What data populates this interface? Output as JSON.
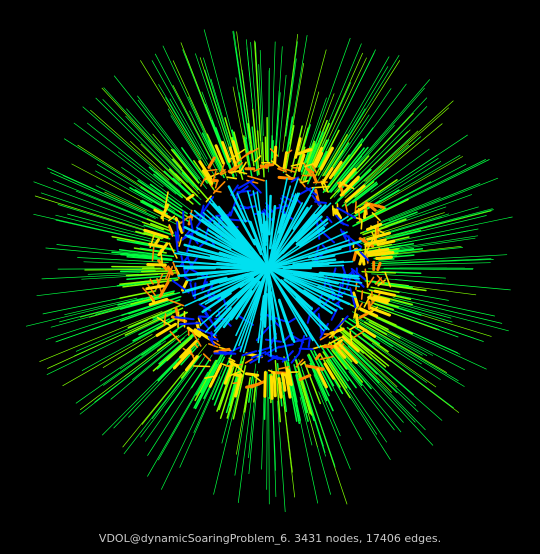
{
  "caption": "VDOL@dynamicSoaringProblem_6. 3431 nodes, 17406 edges.",
  "colors": {
    "background": "#000000",
    "caption_text": "#c8c8c8",
    "edge_short": "#0020ff",
    "edge_inner": "#00e0f0",
    "edge_mid": "#ff8c00",
    "edge_warm": "#ffe000",
    "edge_lime": "#80ff00",
    "edge_outer": "#00ff40"
  }
}
